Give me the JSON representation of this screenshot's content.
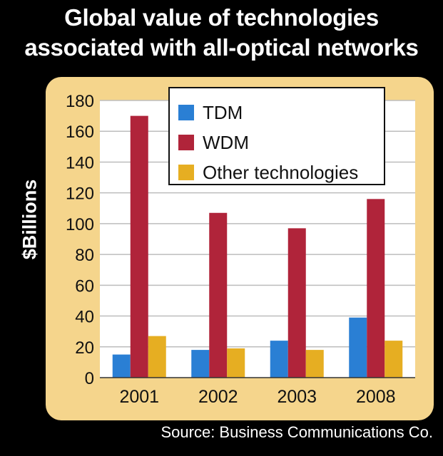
{
  "title_line1": "Global value of technologies",
  "title_line2": "associated with all-optical networks",
  "source": "Source: Business Communications Co.",
  "chart_data": {
    "type": "bar",
    "title": "Global value of technologies associated with all-optical networks",
    "ylabel": "$Billions",
    "xlabel": "",
    "categories": [
      "2001",
      "2002",
      "2003",
      "2008"
    ],
    "ylim": [
      0,
      180
    ],
    "yticks": [
      0,
      20,
      40,
      60,
      80,
      100,
      120,
      140,
      160,
      180
    ],
    "grid": true,
    "legend_position": "top-right",
    "series": [
      {
        "name": "TDM",
        "color": "#2a7fd4",
        "values": [
          15,
          18,
          24,
          39
        ]
      },
      {
        "name": "WDM",
        "color": "#b0243a",
        "values": [
          170,
          107,
          97,
          116
        ]
      },
      {
        "name": "Other technologies",
        "color": "#e6ae22",
        "values": [
          27,
          19,
          18,
          24
        ]
      }
    ]
  }
}
